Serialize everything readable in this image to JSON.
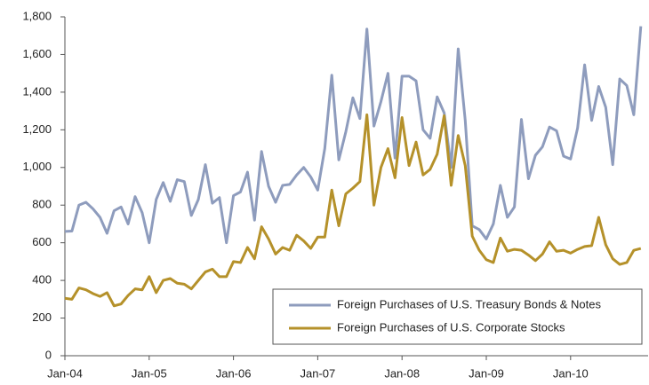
{
  "chart_data": {
    "type": "line",
    "categories": [
      "Jan-04",
      null,
      null,
      null,
      null,
      null,
      null,
      null,
      null,
      null,
      null,
      null,
      "Jan-05",
      null,
      null,
      null,
      null,
      null,
      null,
      null,
      null,
      null,
      null,
      null,
      "Jan-06",
      null,
      null,
      null,
      null,
      null,
      null,
      null,
      null,
      null,
      null,
      null,
      "Jan-07",
      null,
      null,
      null,
      null,
      null,
      null,
      null,
      null,
      null,
      null,
      null,
      "Jan-08",
      null,
      null,
      null,
      null,
      null,
      null,
      null,
      null,
      null,
      null,
      null,
      "Jan-09",
      null,
      null,
      null,
      null,
      null,
      null,
      null,
      null,
      null,
      null,
      null,
      "Jan-10",
      null,
      null,
      null,
      null,
      null,
      null,
      null,
      null,
      null,
      null
    ],
    "series": [
      {
        "name": "Foreign Purchases of U.S. Treasury Bonds & Notes",
        "color": "#8e9cbd",
        "values": [
          660,
          662,
          800,
          815,
          780,
          735,
          650,
          770,
          790,
          700,
          845,
          760,
          600,
          830,
          920,
          820,
          935,
          925,
          745,
          830,
          1015,
          810,
          840,
          600,
          850,
          870,
          975,
          720,
          1085,
          900,
          815,
          905,
          910,
          960,
          1000,
          950,
          880,
          1100,
          1490,
          1040,
          1190,
          1370,
          1260,
          1735,
          1220,
          1350,
          1500,
          1050,
          1485,
          1485,
          1460,
          1200,
          1155,
          1375,
          1290,
          1000,
          1630,
          1250,
          690,
          670,
          620,
          700,
          905,
          735,
          790,
          1255,
          940,
          1065,
          1110,
          1215,
          1195,
          1060,
          1045,
          1210,
          1545,
          1250,
          1430,
          1320,
          1015,
          1470,
          1435,
          1280,
          1750
        ]
      },
      {
        "name": "Foreign Purchases of U.S. Corporate Stocks",
        "color": "#b5912a",
        "values": [
          305,
          300,
          360,
          350,
          330,
          315,
          335,
          265,
          275,
          320,
          355,
          350,
          420,
          335,
          400,
          410,
          385,
          380,
          355,
          400,
          445,
          460,
          420,
          420,
          500,
          495,
          575,
          515,
          685,
          620,
          540,
          575,
          560,
          640,
          610,
          570,
          630,
          630,
          880,
          690,
          860,
          890,
          925,
          1280,
          800,
          1000,
          1100,
          945,
          1265,
          1010,
          1135,
          960,
          990,
          1070,
          1275,
          905,
          1170,
          1010,
          635,
          560,
          510,
          495,
          625,
          555,
          565,
          560,
          535,
          505,
          540,
          605,
          555,
          560,
          545,
          565,
          580,
          585,
          735,
          590,
          515,
          485,
          495,
          560,
          570
        ]
      }
    ],
    "ylim": [
      0,
      1800
    ],
    "yticks": [
      0,
      200,
      400,
      600,
      800,
      {
        "value": 1000,
        "label": "1,000"
      },
      {
        "value": 1200,
        "label": "1,200"
      },
      {
        "value": 1400,
        "label": "1,400"
      },
      {
        "value": 1600,
        "label": "1,600"
      },
      {
        "value": 1800,
        "label": "1,800"
      }
    ],
    "legend": "lower right"
  }
}
